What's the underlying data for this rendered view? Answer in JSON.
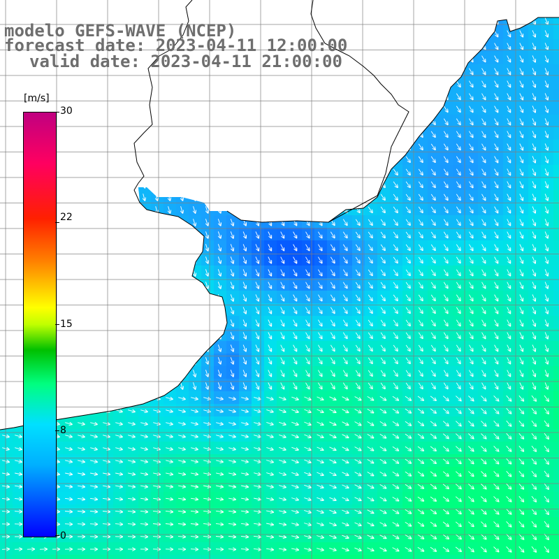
{
  "title": {
    "line1": "modelo GEFS-WAVE (NCEP)",
    "line2": "forecast date: 2023-04-11 12:00:00",
    "line3": "valid date: 2023-04-11 21:00:00"
  },
  "colorbar": {
    "unit": "[m/s]",
    "ticks": [
      {
        "label": "30",
        "value": 30
      },
      {
        "label": "22",
        "value": 22
      },
      {
        "label": "15",
        "value": 15
      },
      {
        "label": "8",
        "value": 8
      },
      {
        "label": "0",
        "value": 0
      }
    ],
    "range": [
      0,
      30
    ]
  },
  "colors": {
    "calm": "#0048ff",
    "light": "#1a9cff",
    "moderate": "#00e0f0",
    "fresh": "#00ff80",
    "coastline": "#000000",
    "land": "#ffffff",
    "grid": "#808080",
    "arrow": "#ffffff"
  },
  "map": {
    "variable": "wind speed and direction",
    "land_color": "white",
    "grid": true
  }
}
